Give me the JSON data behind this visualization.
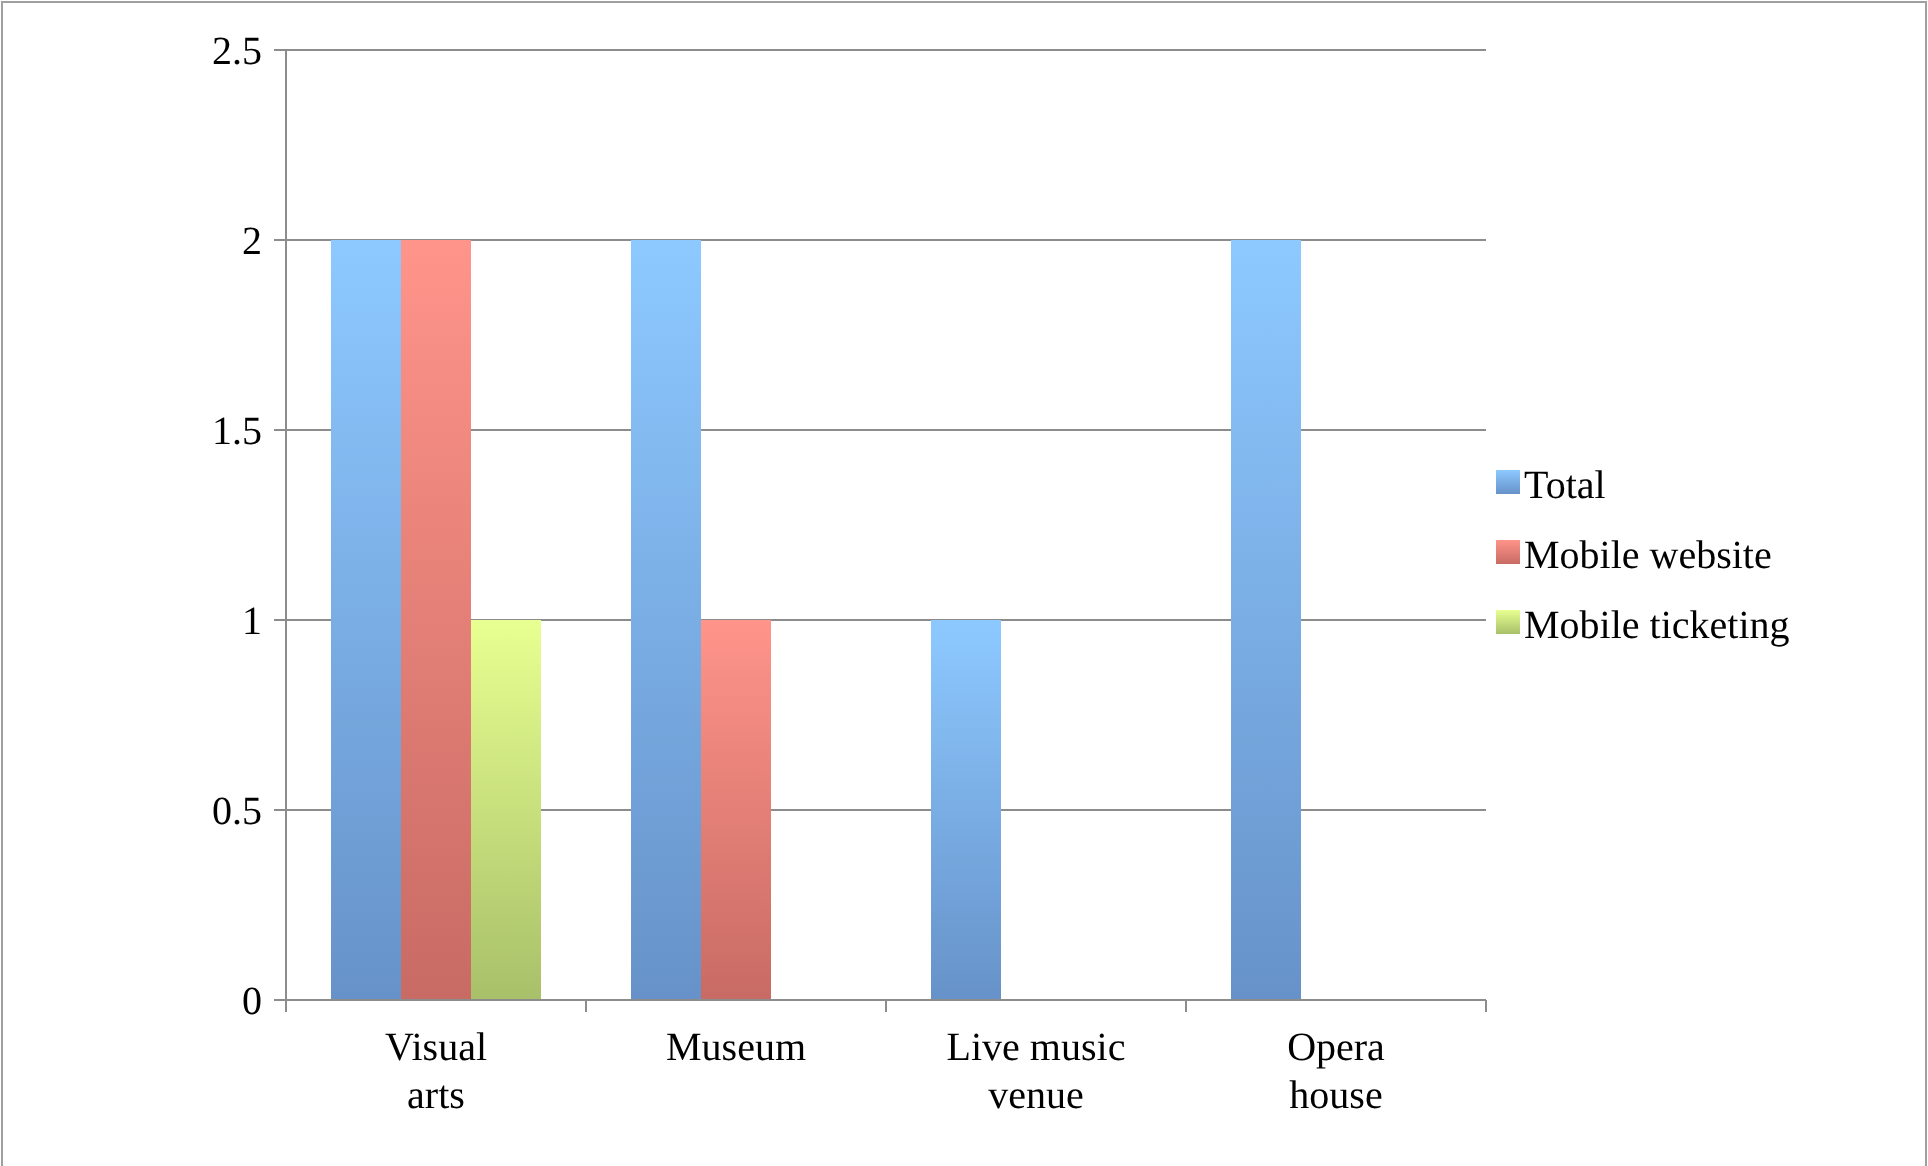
{
  "chart_data": {
    "type": "bar",
    "categories": [
      "Visual arts",
      "Museum",
      "Live music venue",
      "Opera house"
    ],
    "series": [
      {
        "name": "Total",
        "color": "#7aaef0",
        "values": [
          2,
          2,
          1,
          2
        ]
      },
      {
        "name": "Mobile website",
        "color": "#ef8078",
        "values": [
          2,
          1,
          0,
          0
        ]
      },
      {
        "name": "Mobile ticketing",
        "color": "#c9e57e",
        "values": [
          1,
          0,
          0,
          0
        ]
      }
    ],
    "ylim": [
      0,
      2.5
    ],
    "yticks": [
      0,
      0.5,
      1,
      1.5,
      2,
      2.5
    ],
    "grid": "y",
    "legend": "right"
  }
}
